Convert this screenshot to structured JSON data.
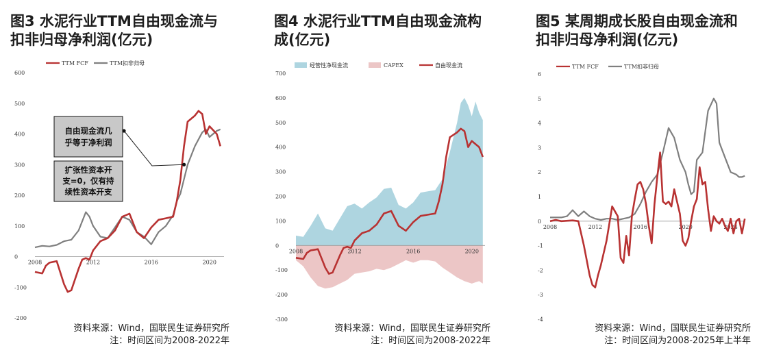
{
  "charts": [
    {
      "title_line1": "图3 水泥行业TTM自由现金流与",
      "title_line2": "扣非归母净利润(亿元)",
      "source_line1": "资料来源：Wind，国联民生证券研究所",
      "source_line2": "注：时间区间为2008-2022年",
      "annotation1": [
        "自由现金流几",
        "乎等于净利润"
      ],
      "annotation2": [
        "扩张性资本开",
        "支=0，仅有持",
        "续性资本开支"
      ],
      "colors": {
        "fcf": "#b83232",
        "profit": "#7f7f7f",
        "box": "#c8c8c8"
      }
    },
    {
      "title_line1": "图4 水泥行业TTM自由现金流构",
      "title_line2": "成(亿元)",
      "source_line1": "资料来源：Wind，国联民生证券研究所",
      "source_line2": "注：时间区间为2008-2022年",
      "colors": {
        "ocf": "#aed5e0",
        "capex": "#ecc6c6",
        "fcf": "#b83232"
      }
    },
    {
      "title_line1": "图5 某周期成长股自由现金流和",
      "title_line2": "扣非归母净利润(亿元)",
      "source_line1": "资料来源：Wind，国联民生证券研究所",
      "source_line2": "注：时间区间为2008-2025年上半年",
      "colors": {
        "fcf": "#b83232",
        "profit": "#7f7f7f"
      }
    }
  ],
  "chart_data": [
    {
      "type": "line",
      "legend": [
        "TTM FCF",
        "TTM扣非归母"
      ],
      "ylim": [
        -200,
        600
      ],
      "yticks": [
        -200,
        -100,
        0,
        100,
        200,
        300,
        400,
        500,
        600
      ],
      "xticks": [
        2008,
        2012,
        2016,
        2020
      ],
      "series": [
        {
          "name": "TTM FCF",
          "x": [
            2008,
            2008.5,
            2008.75,
            2009,
            2009.5,
            2010,
            2010.25,
            2010.5,
            2011,
            2011.25,
            2011.5,
            2011.75,
            2012,
            2012.5,
            2013,
            2013.5,
            2014,
            2014.5,
            2015,
            2015.5,
            2016,
            2016.5,
            2017,
            2017.5,
            2017.75,
            2018,
            2018.25,
            2018.5,
            2019,
            2019.25,
            2019.5,
            2019.75,
            2020,
            2020.5,
            2020.75
          ],
          "y": [
            -50,
            -55,
            -30,
            -20,
            -15,
            -90,
            -115,
            -110,
            -40,
            -10,
            -5,
            -10,
            20,
            50,
            60,
            85,
            130,
            140,
            80,
            60,
            95,
            120,
            125,
            130,
            180,
            250,
            360,
            440,
            460,
            475,
            465,
            400,
            425,
            400,
            360
          ]
        },
        {
          "name": "TTM扣非归母",
          "x": [
            2008,
            2008.5,
            2009,
            2009.5,
            2010,
            2010.5,
            2011,
            2011.5,
            2011.75,
            2012,
            2012.5,
            2013,
            2013.5,
            2014,
            2014.5,
            2015,
            2015.5,
            2016,
            2016.5,
            2017,
            2017.5,
            2017.75,
            2018,
            2018.5,
            2019,
            2019.5,
            2019.75,
            2020,
            2020.5,
            2020.75
          ],
          "y": [
            30,
            35,
            33,
            38,
            50,
            55,
            85,
            145,
            130,
            100,
            65,
            60,
            95,
            130,
            120,
            80,
            65,
            40,
            80,
            100,
            135,
            180,
            205,
            300,
            360,
            405,
            415,
            390,
            410,
            415
          ]
        }
      ]
    },
    {
      "type": "area",
      "legend": [
        "经营性净现金流",
        "CAPEX",
        "自由现金流"
      ],
      "ylim": [
        -300,
        700
      ],
      "yticks": [
        -300,
        -200,
        -100,
        0,
        100,
        200,
        300,
        400,
        500,
        600,
        700
      ],
      "xticks": [
        2008,
        2012,
        2016,
        2020
      ],
      "series": [
        {
          "name": "经营性净现金流",
          "x": [
            2008,
            2008.5,
            2009,
            2009.5,
            2010,
            2010.5,
            2011,
            2011.5,
            2012,
            2012.5,
            2013,
            2013.5,
            2014,
            2014.5,
            2015,
            2015.5,
            2016,
            2016.5,
            2017,
            2017.5,
            2018,
            2018.5,
            2019,
            2019.25,
            2019.5,
            2019.75,
            2020,
            2020.25,
            2020.5,
            2020.75
          ],
          "y": [
            40,
            35,
            80,
            130,
            70,
            60,
            110,
            160,
            170,
            150,
            175,
            195,
            230,
            235,
            165,
            150,
            175,
            215,
            220,
            225,
            270,
            380,
            500,
            580,
            600,
            570,
            525,
            585,
            540,
            510
          ]
        },
        {
          "name": "CAPEX",
          "x": [
            2008,
            2008.5,
            2009,
            2009.5,
            2010,
            2010.5,
            2011,
            2011.5,
            2012,
            2012.5,
            2013,
            2013.5,
            2014,
            2014.5,
            2015,
            2015.5,
            2016,
            2016.5,
            2017,
            2017.5,
            2018,
            2018.5,
            2019,
            2019.5,
            2020,
            2020.5,
            2020.75
          ],
          "y": [
            -60,
            -85,
            -130,
            -165,
            -175,
            -170,
            -155,
            -140,
            -115,
            -110,
            -105,
            -95,
            -100,
            -90,
            -75,
            -60,
            -70,
            -60,
            -60,
            -65,
            -90,
            -110,
            -130,
            -145,
            -155,
            -145,
            -155
          ]
        },
        {
          "name": "自由现金流",
          "x": [
            2008,
            2008.5,
            2008.75,
            2009,
            2009.5,
            2010,
            2010.25,
            2010.5,
            2011,
            2011.25,
            2011.5,
            2011.75,
            2012,
            2012.5,
            2013,
            2013.5,
            2014,
            2014.5,
            2015,
            2015.5,
            2016,
            2016.5,
            2017,
            2017.5,
            2017.75,
            2018,
            2018.25,
            2018.5,
            2019,
            2019.25,
            2019.5,
            2019.75,
            2020,
            2020.5,
            2020.75
          ],
          "y": [
            -50,
            -55,
            -30,
            -20,
            -15,
            -90,
            -115,
            -110,
            -40,
            -10,
            -5,
            -10,
            20,
            50,
            60,
            85,
            130,
            140,
            80,
            60,
            95,
            120,
            125,
            130,
            180,
            250,
            360,
            440,
            460,
            475,
            465,
            400,
            425,
            400,
            360
          ]
        }
      ]
    },
    {
      "type": "line",
      "legend": [
        "TTM FCF",
        "TTM扣非归母"
      ],
      "ylim": [
        -4,
        6
      ],
      "yticks": [
        -4,
        -3,
        -2,
        -1,
        0,
        1,
        2,
        3,
        4,
        5,
        6
      ],
      "xticks": [
        2008,
        2012,
        2016,
        2020,
        2024
      ],
      "series": [
        {
          "name": "TTM FCF",
          "x": [
            2008,
            2008.5,
            2009,
            2010,
            2010.5,
            2011,
            2011.5,
            2011.75,
            2012,
            2012.25,
            2012.5,
            2013,
            2013.5,
            2014,
            2014.25,
            2014.5,
            2014.75,
            2015,
            2015.25,
            2015.5,
            2015.75,
            2016,
            2016.25,
            2016.5,
            2016.75,
            2017,
            2017.25,
            2017.5,
            2017.75,
            2018,
            2018.25,
            2018.5,
            2018.75,
            2019,
            2019.25,
            2019.5,
            2019.75,
            2020,
            2020.25,
            2020.5,
            2020.75,
            2021,
            2021.25,
            2021.5,
            2021.75,
            2022,
            2022.25,
            2022.5,
            2022.75,
            2023,
            2023.25,
            2023.5,
            2023.75,
            2024,
            2024.25,
            2024.5,
            2024.75,
            2025,
            2025.25
          ],
          "y": [
            0,
            0.05,
            0,
            0.03,
            0,
            -1.0,
            -2.2,
            -2.6,
            -2.7,
            -2.2,
            -1.8,
            -0.8,
            0.6,
            0.2,
            -1.5,
            -1.7,
            -0.6,
            -1.4,
            0.2,
            0.9,
            1.5,
            1.6,
            1.3,
            0.7,
            -0.2,
            -0.9,
            0.7,
            1.8,
            2.8,
            0.8,
            0.7,
            0.8,
            0.6,
            1.3,
            0.8,
            0.3,
            -0.8,
            -1.0,
            -0.7,
            0,
            0.6,
            0.9,
            2.2,
            1.5,
            1.6,
            0.5,
            -0.4,
            0.2,
            0,
            -0.1,
            0.1,
            -0.2,
            -0.4,
            0.1,
            -0.5,
            0,
            0.1,
            -0.5,
            0.1
          ]
        },
        {
          "name": "TTM扣非归母",
          "x": [
            2008,
            2009,
            2009.5,
            2010,
            2010.5,
            2011,
            2011.5,
            2012,
            2012.5,
            2013,
            2013.5,
            2014,
            2014.5,
            2015,
            2015.5,
            2016,
            2016.5,
            2017,
            2017.5,
            2018,
            2018.5,
            2019,
            2019.5,
            2020,
            2020.25,
            2020.5,
            2020.75,
            2021,
            2021.5,
            2022,
            2022.5,
            2022.75,
            2023,
            2023.5,
            2024,
            2024.5,
            2024.75,
            2025,
            2025.25
          ],
          "y": [
            0.15,
            0.15,
            0.2,
            0.45,
            0.2,
            0.4,
            0.2,
            0.1,
            0.05,
            0.1,
            0.1,
            0.05,
            0.1,
            0.15,
            0.3,
            0.7,
            1.2,
            1.6,
            1.9,
            2.8,
            3.8,
            3.4,
            2.5,
            2.0,
            1.5,
            1.1,
            1.2,
            2.5,
            2.8,
            4.5,
            5.0,
            4.8,
            3.2,
            2.6,
            2.0,
            1.9,
            1.8,
            1.8,
            1.85
          ]
        }
      ]
    }
  ]
}
